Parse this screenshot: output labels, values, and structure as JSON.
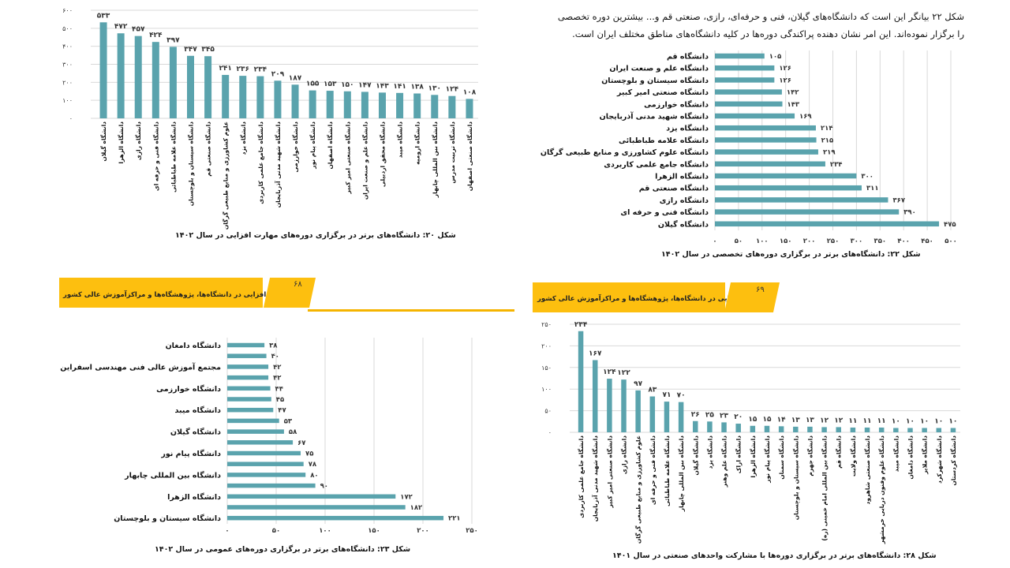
{
  "colors": {
    "bar": "#5aa3ad",
    "grid": "#d9d9d9",
    "banner": "#fdbf0f"
  },
  "paragraph": "شکل ۲۲ بیانگر این است که دانشگاه‌های گیلان، فنی و حرفه‌ای، رازی، صنعتی قم و... بیشترین دوره تخصصی را برگزار نموده‌اند. این امر نشان دهنده پراکندگی دوره‌ها در کلیه دانشگاه‌های مناطق مختلف ایران است.",
  "banners": [
    {
      "title": "مهارت‌افزایی در دانشگاه‌ها، پژوهشگاه‌ها و مراکزآموزش عالی کشور",
      "page": "۶۸"
    },
    {
      "title": "مهارت‌افزایی در دانشگاه‌ها، پژوهشگاه‌ها و مراکزآموزش عالی کشور",
      "page": "۶۹"
    }
  ],
  "chart_data": [
    {
      "type": "bar",
      "orientation": "vertical",
      "title": "شکل ۲۰: دانشگاه‌های برتر در برگزاری دوره‌های مهارت افزایی در سال ۱۴۰۲",
      "ylim": [
        0,
        600
      ],
      "ytick_step": 100,
      "grid": true,
      "categories": [
        "دانشگاه گیلان",
        "دانشگاه الزهرا",
        "دانشگاه رازی",
        "دانشگاه فنی و حرفه ای",
        "دانشگاه علامه طباطبائی",
        "دانشگاه سیستان و بلوچستان",
        "دانشگاه صنعتی قم",
        "علوم کشاورزی و منابع طبیعی گرگان",
        "دانشگاه یزد",
        "دانشگاه جامع علمی کاربردی",
        "دانشگاه شهید مدنی آذربایجان",
        "دانشگاه خوارزمی",
        "دانشگاه پیام نور",
        "دانشگاه اصفهان",
        "دانشگاه صنعتی امیر کبیر",
        "دانشگاه علم و صنعت ایران",
        "دانشگاه محقق اردبیلی",
        "دانشگاه میبد",
        "دانشگاه ارومیه",
        "دانشگاه بین المللی چابهار",
        "دانشگاه تربیت مدرس",
        "دانشگاه صنعتی اصفهان"
      ],
      "values": [
        533,
        472,
        457,
        424,
        397,
        347,
        345,
        241,
        236,
        234,
        209,
        187,
        155,
        153,
        150,
        147,
        143,
        141,
        138,
        130,
        124,
        108
      ]
    },
    {
      "type": "bar",
      "orientation": "horizontal",
      "title": "شکل ۲۲: دانشگاه‌های برتر در برگزاری دوره‌های  تخصصی در سال ۱۴۰۲",
      "xlim": [
        0,
        500
      ],
      "xtick_step": 50,
      "grid": true,
      "categories": [
        "دانشگاه قم",
        "دانشگاه علم و صنعت ایران",
        "دانشگاه سیستان و بلوچستان",
        "دانشگاه صنعتی امیر کبیر",
        "دانشگاه خوارزمی",
        "دانشگاه شهید مدنی آذربایجان",
        "دانشگاه یزد",
        "دانشگاه علامه طباطبائی",
        "دانشگاه علوم کشاورزی و منابع طبیعی گرگان",
        "دانشگاه جامع علمی کاربردی",
        "دانشگاه الزهرا",
        "دانشگاه صنعتی قم",
        "دانشگاه رازی",
        "دانشگاه فنی و حرفه ای",
        "دانشگاه گیلان"
      ],
      "values": [
        105,
        126,
        126,
        142,
        143,
        169,
        214,
        215,
        219,
        234,
        300,
        311,
        367,
        390,
        475
      ]
    },
    {
      "type": "bar",
      "orientation": "horizontal",
      "title": "شکل ۲۳: دانشگاه‌های برتر در برگزاری دوره‌های عمومی در سال ۱۴۰۲",
      "xlim": [
        0,
        250
      ],
      "xtick_step": 50,
      "grid": true,
      "categories": [
        "دانشگاه دامغان",
        "",
        "مجتمع آموزش عالی فنی مهندسی اسفراین",
        "",
        "دانشگاه خوارزمی",
        "",
        "دانشگاه میبد",
        "",
        "دانشگاه گیلان",
        "",
        "دانشگاه پیام نور",
        "",
        "دانشگاه بین المللی چابهار",
        "",
        "دانشگاه الزهرا",
        "",
        "دانشگاه سیستان و بلوچستان"
      ],
      "values": [
        38,
        40,
        42,
        42,
        44,
        45,
        47,
        53,
        58,
        67,
        75,
        78,
        80,
        90,
        172,
        182,
        221
      ]
    },
    {
      "type": "bar",
      "orientation": "vertical",
      "title": "شکل ۲۸: دانشگاه‌های برتر در برگزاری دوره‌ها با مشارکت واحدهای صنعتی در سال ۱۴۰۱",
      "ylim": [
        0,
        250
      ],
      "ytick_step": 50,
      "grid": true,
      "categories": [
        "دانشگاه جامع علمی کاربردی",
        "دانشگاه شهید مدنی آذربایجان",
        "دانشگاه صنعتی امیر کبیر",
        "دانشگاه رازی",
        "علوم کشاورزی و منابع طبیعی گرگان",
        "دانشگاه فنی و حرفه ای",
        "دانشگاه علامه طباطبائی",
        "دانشگاه بین المللی چابهار",
        "دانشگاه گیلان",
        "دانشگاه یزد",
        "دانشگاه علم وهنر",
        "دانشگاه اراک",
        "دانشگاه الزهرا",
        "دانشگاه پیام نور",
        "دانشگاه سمنان",
        "دانشگاه سیستان و بلوچستان",
        "دانشگاه جهرم",
        "دانشگاه بین المللی امام خمینی (ره)",
        "دانشگاه قم",
        "دانشگاه ولایت",
        "دانشگاه صنعتی شاهرود",
        "دانشگاه علوم وفنون دریایی خرمشهر",
        "دانشگاه میبد",
        "دانشگاه دامغان",
        "دانشگاه ملایر",
        "دانشگاه شهرکرد",
        "دانشگاه کردستان"
      ],
      "values": [
        234,
        167,
        124,
        122,
        97,
        83,
        71,
        70,
        26,
        25,
        23,
        20,
        15,
        15,
        14,
        13,
        13,
        12,
        12,
        11,
        11,
        11,
        10,
        10,
        10,
        10,
        10
      ]
    }
  ]
}
